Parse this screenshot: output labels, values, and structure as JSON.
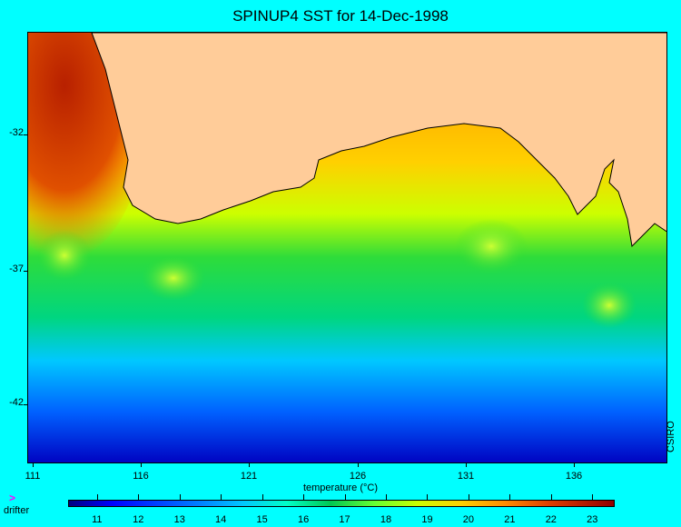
{
  "title": "SPINUP4 SST for 14-Dec-1998",
  "map": {
    "land_color": "#ffcc99",
    "latitude_ticks": [
      "-32",
      "-37",
      "-42"
    ],
    "longitude_ticks": [
      "111",
      "116",
      "121",
      "126",
      "131",
      "136"
    ],
    "credit": "CSIRO"
  },
  "colorbar": {
    "title": "temperature (°C)",
    "labels": [
      "11",
      "12",
      "13",
      "14",
      "15",
      "16",
      "17",
      "18",
      "19",
      "20",
      "21",
      "22",
      "23"
    ],
    "range": [
      10.3,
      23.5
    ]
  },
  "legend": {
    "marker_icon": "chevron-right-icon",
    "marker_glyph": ">",
    "marker_color": "#ff00ff",
    "label": "drifter"
  }
}
